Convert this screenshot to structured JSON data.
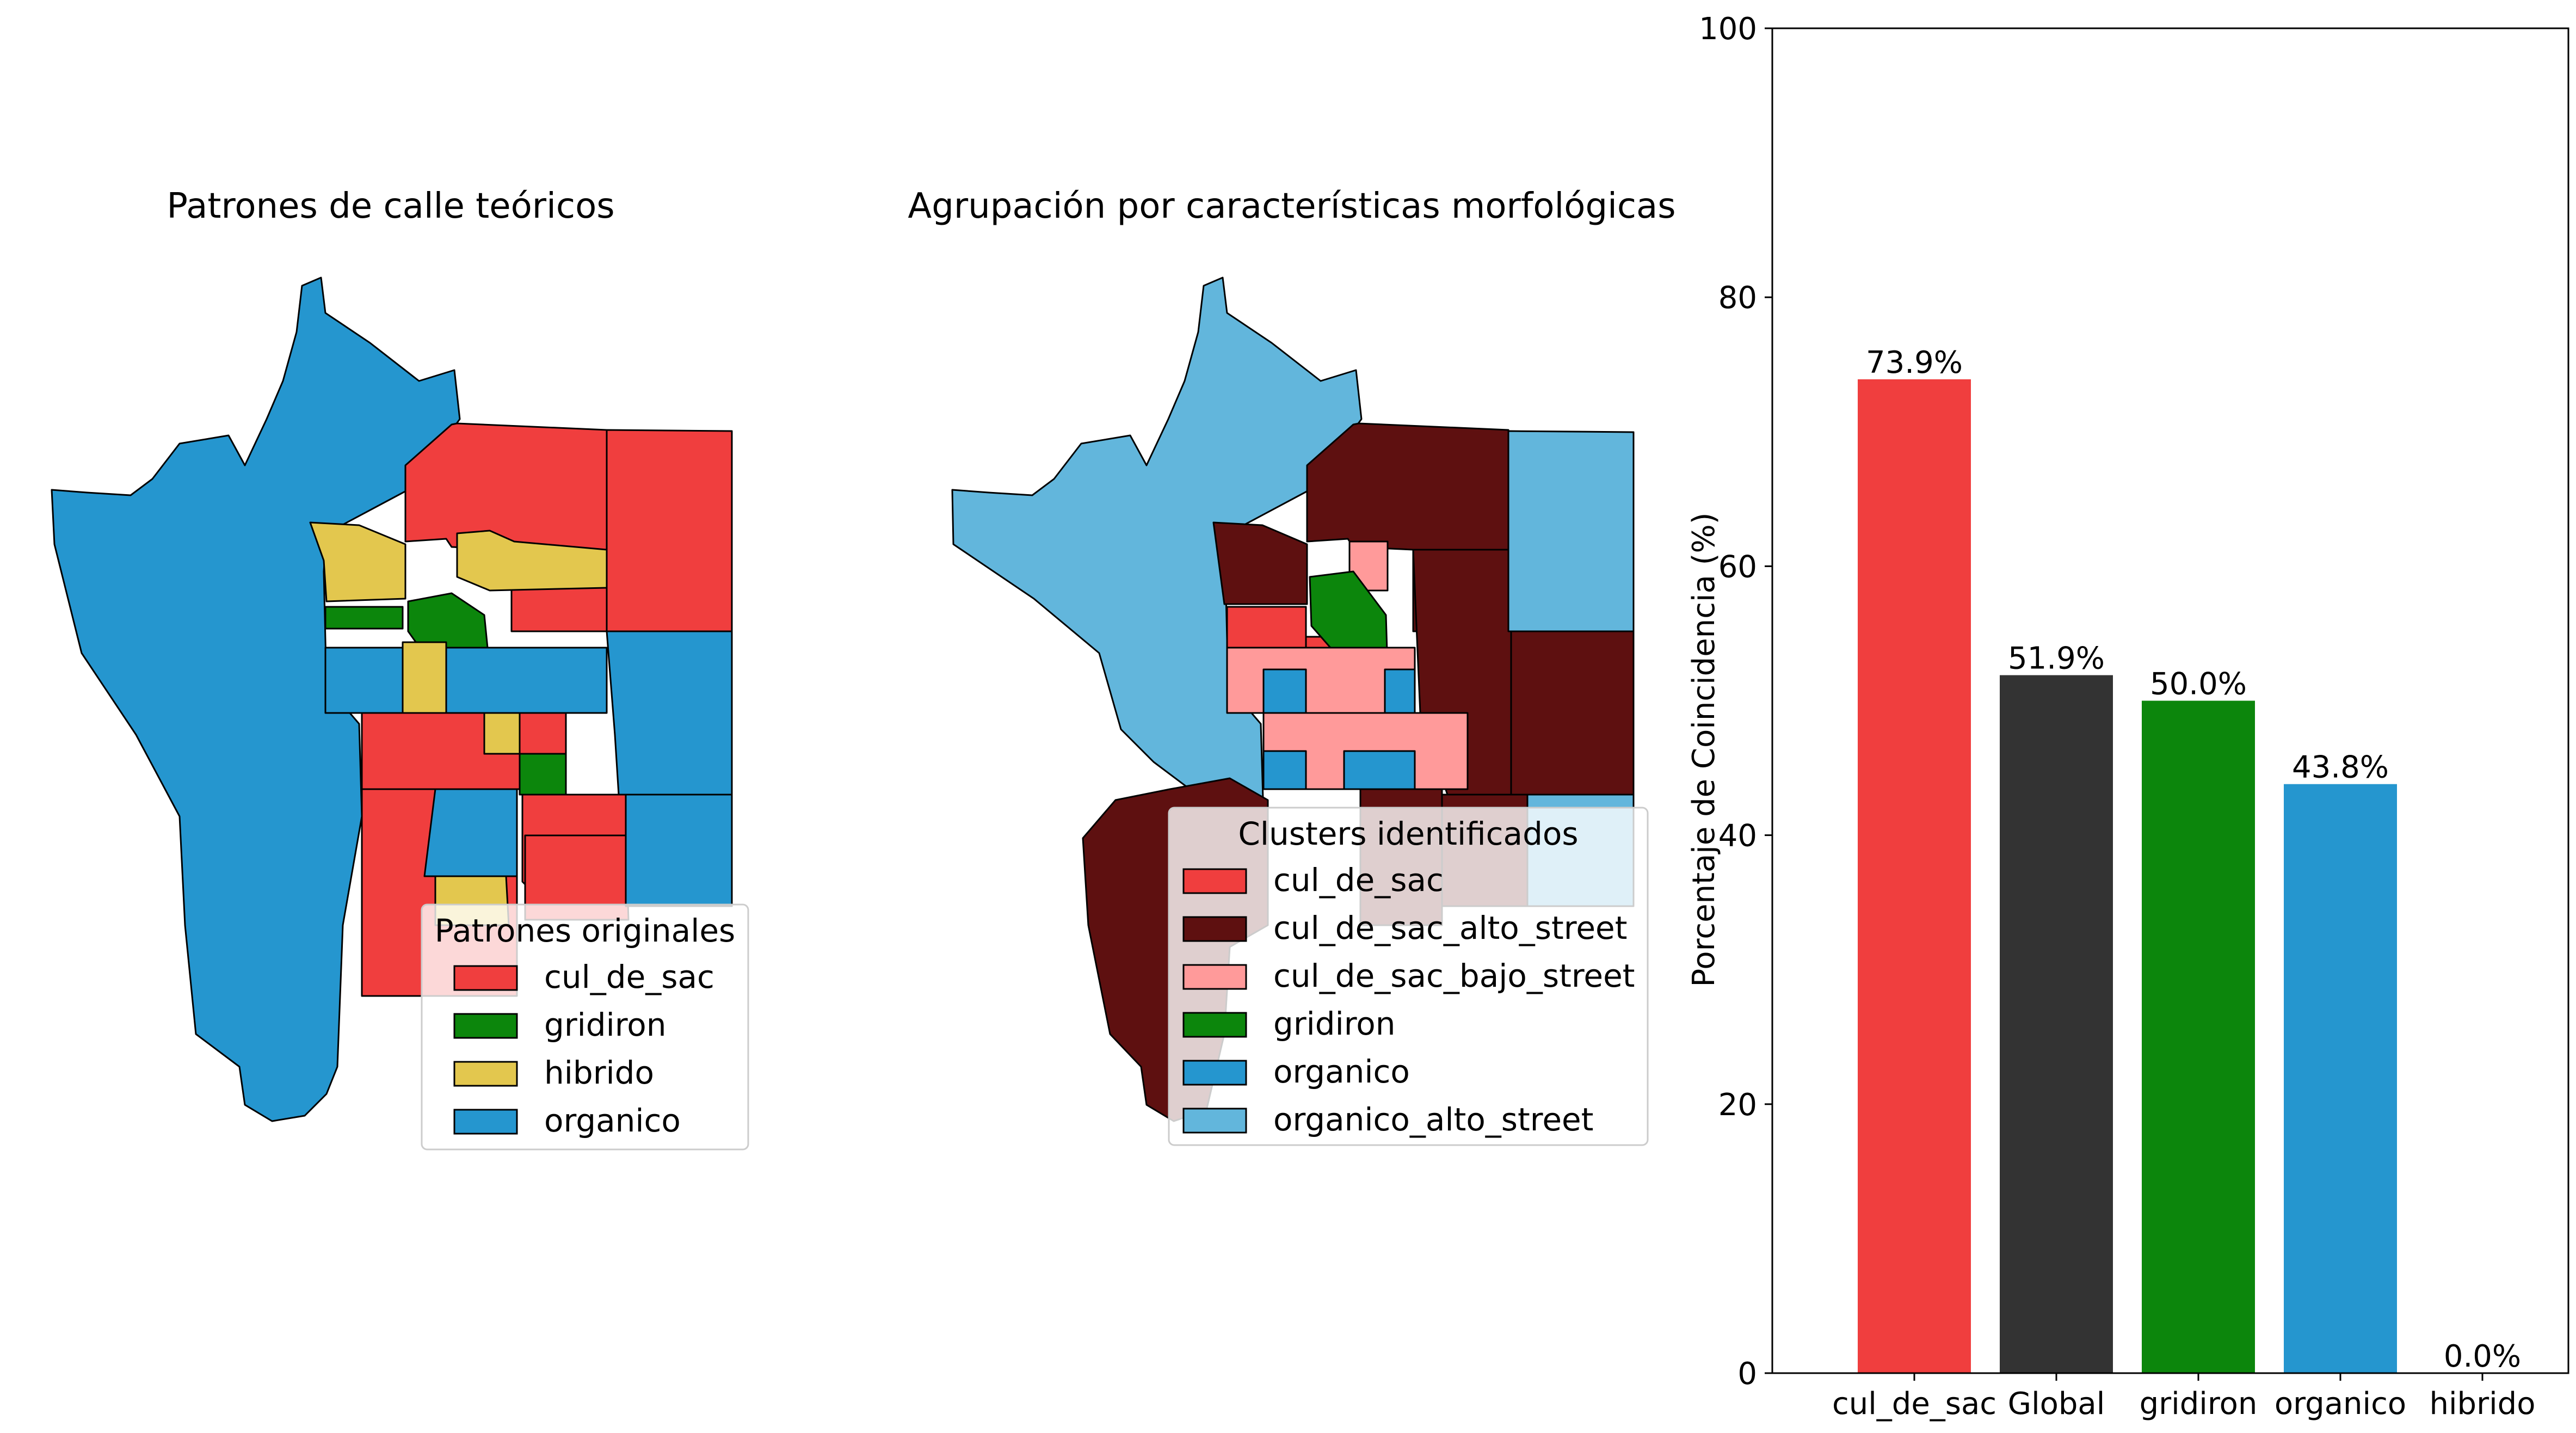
{
  "maps": [
    {
      "title": "Patrones de calle teóricos",
      "legend": {
        "title": "Patrones originales",
        "items": [
          {
            "label": "cul_de_sac",
            "color": "#F03E3E"
          },
          {
            "label": "gridiron",
            "color": "#0C860C"
          },
          {
            "label": "hibrido",
            "color": "#E3C74E"
          },
          {
            "label": "organico",
            "color": "#2596CF"
          }
        ]
      }
    },
    {
      "title": "Agrupación por características morfológicas",
      "legend": {
        "title": "Clusters identificados",
        "items": [
          {
            "label": "cul_de_sac",
            "color": "#F03E3E"
          },
          {
            "label": "cul_de_sac_alto_street",
            "color": "#5E1010"
          },
          {
            "label": "cul_de_sac_bajo_street",
            "color": "#FF9A9A"
          },
          {
            "label": "gridiron",
            "color": "#0C860C"
          },
          {
            "label": "organico",
            "color": "#2596CF"
          },
          {
            "label": "organico_alto_street",
            "color": "#62B6DC"
          }
        ]
      }
    }
  ],
  "chart_data": {
    "type": "bar",
    "categories": [
      "cul_de_sac",
      "Global",
      "gridiron",
      "organico",
      "hibrido"
    ],
    "values": [
      73.9,
      51.9,
      50.0,
      43.8,
      0.0
    ],
    "value_labels": [
      "73.9%",
      "51.9%",
      "50.0%",
      "43.8%",
      "0.0%"
    ],
    "colors": [
      "#F03E3E",
      "#333333",
      "#0C860C",
      "#2596CF",
      "#E3C74E"
    ],
    "title": "",
    "xlabel": "",
    "ylabel": "Porcentaje de Coincidencia (%)",
    "ylim": [
      0,
      100
    ],
    "yticks": [
      "0",
      "20",
      "40",
      "60",
      "80",
      "100"
    ],
    "grid": false
  }
}
